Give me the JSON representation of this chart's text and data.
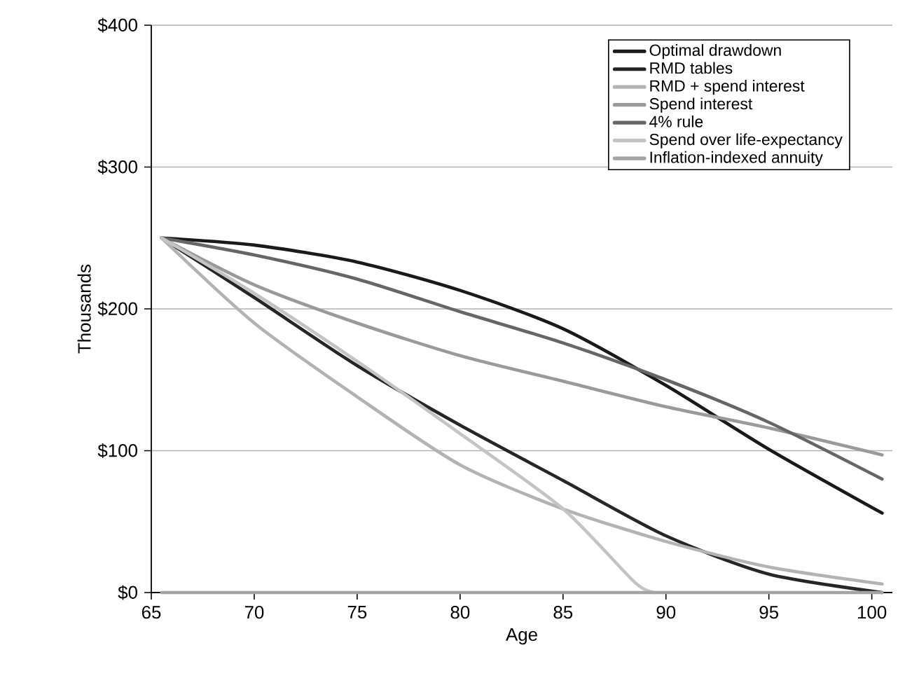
{
  "chart_data": {
    "type": "line",
    "xlabel": "Age",
    "ylabel": "Thousands",
    "xlim": [
      65,
      101
    ],
    "ylim": [
      0,
      400
    ],
    "xticks": [
      65,
      70,
      75,
      80,
      85,
      90,
      95,
      100
    ],
    "yticks": [
      {
        "value": 0,
        "label": "$0"
      },
      {
        "value": 100,
        "label": "$100"
      },
      {
        "value": 200,
        "label": "$200"
      },
      {
        "value": 300,
        "label": "$300"
      },
      {
        "value": 400,
        "label": "$400"
      }
    ],
    "grid": "y",
    "legend": "top right",
    "marker": "none",
    "line_style": "solid",
    "series": [
      {
        "name": "Optimal drawdown",
        "color": "#1a1a1a",
        "x": [
          65.5,
          70,
          75,
          80,
          85,
          90,
          95,
          100.5
        ],
        "values": [
          250,
          245,
          233,
          213,
          186,
          146,
          101,
          56
        ]
      },
      {
        "name": "RMD tables",
        "color": "#262626",
        "x": [
          65.5,
          70,
          75,
          80,
          85,
          90,
          95,
          100.5
        ],
        "values": [
          250,
          208,
          160,
          118,
          79,
          40,
          13,
          0
        ]
      },
      {
        "name": "RMD + spend interest",
        "color": "#b3b3b3",
        "x": [
          65.5,
          70,
          75,
          80,
          85,
          90,
          95,
          100.5
        ],
        "values": [
          250,
          190,
          138,
          90,
          59,
          36,
          18,
          6
        ]
      },
      {
        "name": "Spend interest",
        "color": "#9a9a9a",
        "x": [
          65.5,
          70,
          75,
          80,
          85,
          90,
          95,
          100.5
        ],
        "values": [
          250,
          217,
          190,
          167,
          149,
          131,
          116,
          97
        ]
      },
      {
        "name": "4% rule",
        "color": "#666666",
        "x": [
          65.5,
          70,
          75,
          80,
          85,
          90,
          95,
          100.5
        ],
        "values": [
          250,
          238,
          221,
          198,
          176,
          150,
          120,
          80
        ]
      },
      {
        "name": "Spend over life-expectancy",
        "color": "#c4c4c4",
        "x": [
          65.5,
          70,
          75,
          80,
          85,
          88.5,
          89.5
        ],
        "values": [
          250,
          211,
          163,
          112,
          59,
          7,
          0
        ]
      },
      {
        "name": "Inflation-indexed annuity",
        "color": "#a3a3a3",
        "x": [
          65.5,
          100.5
        ],
        "values": [
          0,
          0
        ]
      }
    ]
  }
}
